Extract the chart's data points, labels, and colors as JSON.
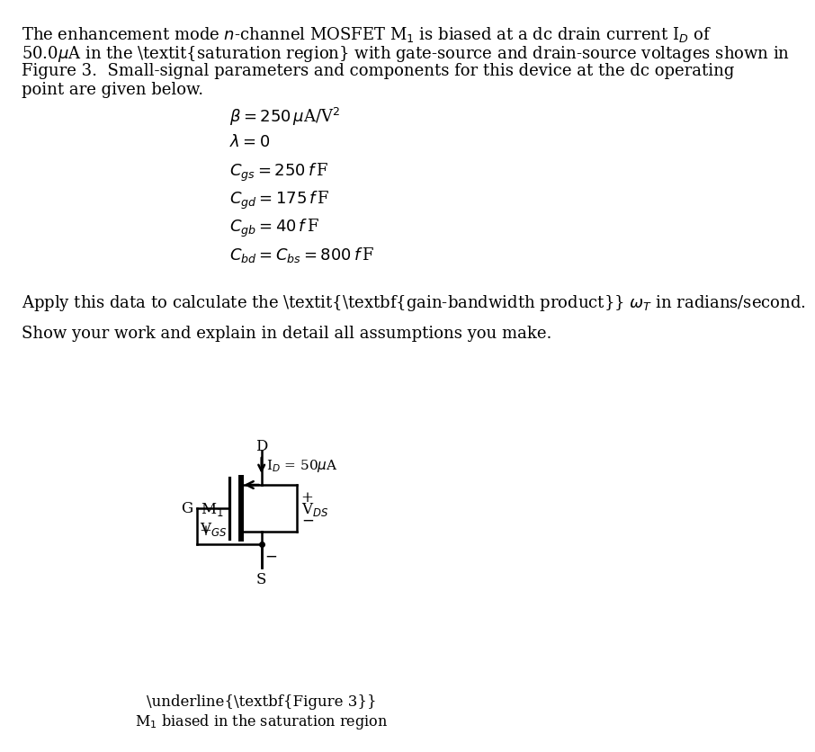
{
  "bg_color": "#ffffff",
  "fig_width": 8.41,
  "fig_height": 8.17,
  "para_lines": [
    "The enhancement mode $n$-channel MOSFET M$_1$ is biased at a dc drain current I$_D$ of",
    "50.0$\\mu$A in the \\textit{saturation region} with gate-source and drain-source voltages shown in",
    "Figure 3.  Small-signal parameters and components for this device at the dc operating",
    "point are given below."
  ],
  "eq_lines": [
    "$\\beta = 250\\,\\mu$A/V$^2$",
    "$\\lambda = 0$",
    "$C_{gs} = 250\\,f\\,$F",
    "$C_{gd} = 175\\,f\\,$F",
    "$C_{gb} = 40\\,f\\,$F",
    "$C_{bd} = C_{bs} = 800\\,f\\,$F"
  ],
  "apply_line": "Apply this data to calculate the \\textit{\\textbf{gain-bandwidth product}} $\\omega_T$ in radians/second.",
  "show_line": "Show your work and explain in detail all assumptions you make.",
  "fig_label": "Figure 3",
  "fig_caption": "M$_1$ biased in the saturation region"
}
